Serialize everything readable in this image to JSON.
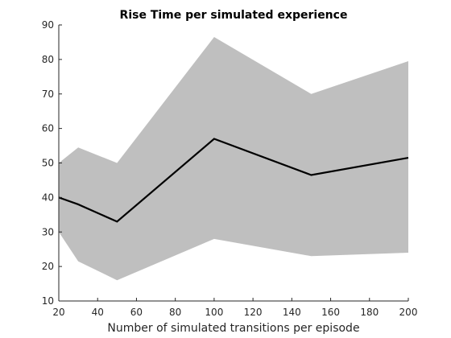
{
  "chart_data": {
    "type": "area",
    "title": "Rise Time per simulated experience",
    "xlabel": "Number of simulated transitions per episode",
    "ylabel": "",
    "xlim": [
      20,
      200
    ],
    "ylim": [
      10,
      90
    ],
    "xticks": [
      20,
      40,
      60,
      80,
      100,
      120,
      140,
      160,
      180,
      200
    ],
    "yticks": [
      10,
      20,
      30,
      40,
      50,
      60,
      70,
      80,
      90
    ],
    "grid": false,
    "colors": {
      "band": "#bfbfbf",
      "line": "#000000",
      "axes": "#262626"
    },
    "x": [
      20,
      30,
      50,
      100,
      150,
      200
    ],
    "series": [
      {
        "role": "mean",
        "values": [
          40,
          38,
          33,
          57,
          46.5,
          51.5
        ]
      },
      {
        "role": "upper",
        "values": [
          50,
          54.5,
          50,
          86.5,
          70,
          79.5
        ]
      },
      {
        "role": "lower",
        "values": [
          30,
          21.5,
          16,
          28,
          23,
          24
        ]
      }
    ]
  }
}
